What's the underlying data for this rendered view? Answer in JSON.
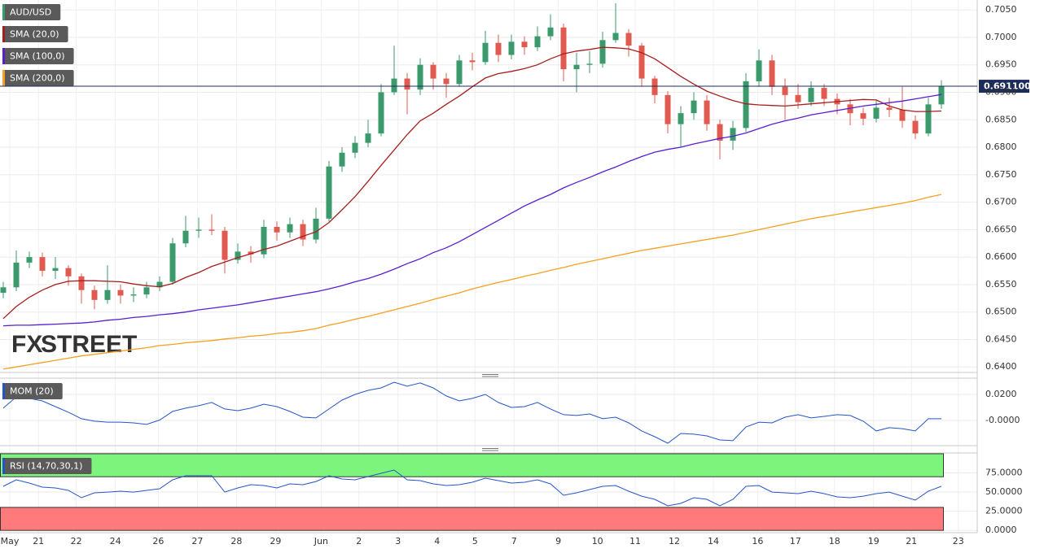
{
  "watermark": [
    "FX",
    "STREET"
  ],
  "chart_data": [
    {
      "type": "candlestick",
      "name": "AUD/USD",
      "up_color": "#3a9a6c",
      "down_color": "#e05a50",
      "open": [
        0.6535,
        0.6545,
        0.659,
        0.66,
        0.6575,
        0.658,
        0.6565,
        0.654,
        0.6522,
        0.654,
        0.653,
        0.6532,
        0.6545,
        0.6555,
        0.6625,
        0.6648,
        0.665,
        0.6648,
        0.6595,
        0.661,
        0.6605,
        0.6655,
        0.6645,
        0.666,
        0.6632,
        0.667,
        0.6765,
        0.679,
        0.6808,
        0.6825,
        0.69,
        0.6925,
        0.6905,
        0.695,
        0.6925,
        0.6915,
        0.6958,
        0.6955,
        0.699,
        0.6968,
        0.6992,
        0.6982,
        0.7002,
        0.7018,
        0.6942,
        0.695,
        0.6952,
        0.6995,
        0.7008,
        0.6985,
        0.6925,
        0.6895,
        0.6842,
        0.6862,
        0.6885,
        0.6842,
        0.6812,
        0.6835,
        0.692,
        0.6958,
        0.691,
        0.6895,
        0.6882,
        0.6908,
        0.6888,
        0.6878,
        0.6862,
        0.6852,
        0.6872,
        0.6868,
        0.6848,
        0.6825,
        0.6878
      ],
      "high": [
        0.6555,
        0.6612,
        0.661,
        0.6608,
        0.66,
        0.6585,
        0.657,
        0.6548,
        0.6585,
        0.655,
        0.6545,
        0.6555,
        0.6565,
        0.6635,
        0.6675,
        0.6672,
        0.6678,
        0.6655,
        0.6625,
        0.662,
        0.6668,
        0.6665,
        0.6672,
        0.6668,
        0.669,
        0.6775,
        0.68,
        0.682,
        0.685,
        0.6915,
        0.6985,
        0.6935,
        0.6962,
        0.6955,
        0.6935,
        0.6968,
        0.6972,
        0.7012,
        0.7005,
        0.7005,
        0.7002,
        0.702,
        0.7042,
        0.7025,
        0.6972,
        0.6975,
        0.701,
        0.7062,
        0.7015,
        0.699,
        0.693,
        0.6902,
        0.6875,
        0.69,
        0.6895,
        0.685,
        0.6848,
        0.6935,
        0.6978,
        0.6968,
        0.6925,
        0.6915,
        0.692,
        0.6915,
        0.6898,
        0.6888,
        0.6872,
        0.6885,
        0.689,
        0.691,
        0.6858,
        0.689,
        0.6922
      ],
      "low": [
        0.6525,
        0.6538,
        0.658,
        0.6565,
        0.656,
        0.6548,
        0.6515,
        0.6505,
        0.6515,
        0.6515,
        0.6518,
        0.6525,
        0.6538,
        0.655,
        0.6618,
        0.6635,
        0.664,
        0.657,
        0.6588,
        0.659,
        0.6598,
        0.663,
        0.6635,
        0.662,
        0.6625,
        0.6665,
        0.6755,
        0.678,
        0.68,
        0.682,
        0.6895,
        0.686,
        0.6895,
        0.6905,
        0.689,
        0.691,
        0.694,
        0.695,
        0.6955,
        0.696,
        0.6968,
        0.6975,
        0.6995,
        0.692,
        0.69,
        0.6935,
        0.6945,
        0.699,
        0.6965,
        0.691,
        0.688,
        0.6825,
        0.68,
        0.685,
        0.683,
        0.6778,
        0.6795,
        0.6828,
        0.691,
        0.6895,
        0.685,
        0.687,
        0.6875,
        0.6875,
        0.686,
        0.684,
        0.684,
        0.6845,
        0.6855,
        0.6835,
        0.6815,
        0.682,
        0.687
      ],
      "close": [
        0.6545,
        0.659,
        0.66,
        0.6575,
        0.658,
        0.6565,
        0.654,
        0.6522,
        0.654,
        0.653,
        0.6532,
        0.6545,
        0.6555,
        0.6625,
        0.6648,
        0.665,
        0.6648,
        0.6595,
        0.661,
        0.6605,
        0.6655,
        0.6645,
        0.666,
        0.6632,
        0.667,
        0.6765,
        0.679,
        0.6808,
        0.6825,
        0.69,
        0.6925,
        0.6905,
        0.695,
        0.6925,
        0.6915,
        0.6958,
        0.6955,
        0.699,
        0.6968,
        0.6992,
        0.6982,
        0.7002,
        0.7018,
        0.6942,
        0.695,
        0.6952,
        0.6995,
        0.7008,
        0.6985,
        0.6925,
        0.6895,
        0.6842,
        0.6862,
        0.6885,
        0.6842,
        0.6812,
        0.6835,
        0.692,
        0.6958,
        0.691,
        0.6895,
        0.6882,
        0.6908,
        0.6888,
        0.6878,
        0.6862,
        0.6852,
        0.6872,
        0.6868,
        0.6848,
        0.6825,
        0.6878,
        0.6911
      ],
      "overlays": [
        {
          "name": "SMA (20,0)",
          "color": "#a51e1e",
          "values": [
            0.6488,
            0.651,
            0.6527,
            0.654,
            0.655,
            0.6556,
            0.6557,
            0.6557,
            0.6556,
            0.6555,
            0.6551,
            0.6548,
            0.6546,
            0.6552,
            0.6563,
            0.6572,
            0.6583,
            0.6591,
            0.6599,
            0.6606,
            0.6614,
            0.662,
            0.6629,
            0.6638,
            0.6646,
            0.6663,
            0.6686,
            0.671,
            0.6738,
            0.6767,
            0.6795,
            0.6823,
            0.6848,
            0.6862,
            0.6878,
            0.6893,
            0.691,
            0.6926,
            0.6934,
            0.6938,
            0.6943,
            0.695,
            0.6961,
            0.697,
            0.6975,
            0.6978,
            0.6982,
            0.6981,
            0.6979,
            0.6972,
            0.6961,
            0.6945,
            0.6929,
            0.6915,
            0.6902,
            0.6893,
            0.6885,
            0.6879,
            0.6877,
            0.6876,
            0.6875,
            0.6877,
            0.6879,
            0.6881,
            0.6883,
            0.6885,
            0.6887,
            0.6886,
            0.6875,
            0.6868,
            0.6865,
            0.6865,
            0.6866
          ]
        },
        {
          "name": "SMA (100,0)",
          "color": "#5a1ed0",
          "values": [
            0.6475,
            0.6476,
            0.6476,
            0.6477,
            0.6478,
            0.6479,
            0.648,
            0.6482,
            0.6485,
            0.6487,
            0.649,
            0.6492,
            0.6495,
            0.6497,
            0.65,
            0.6504,
            0.6507,
            0.651,
            0.6513,
            0.6517,
            0.6521,
            0.6525,
            0.6529,
            0.6533,
            0.6537,
            0.6542,
            0.6548,
            0.6555,
            0.6561,
            0.6569,
            0.6578,
            0.6588,
            0.6597,
            0.6608,
            0.6617,
            0.6628,
            0.6641,
            0.6654,
            0.6667,
            0.668,
            0.6693,
            0.6704,
            0.6714,
            0.6726,
            0.6736,
            0.6745,
            0.6755,
            0.6764,
            0.6774,
            0.6783,
            0.6791,
            0.6796,
            0.68,
            0.6806,
            0.6811,
            0.6816,
            0.682,
            0.6826,
            0.6834,
            0.6842,
            0.6848,
            0.6853,
            0.6859,
            0.6863,
            0.6867,
            0.6871,
            0.6875,
            0.6878,
            0.6881,
            0.6884,
            0.6888,
            0.6892,
            0.6896
          ]
        },
        {
          "name": "SMA (200,0)",
          "color": "#f5a020",
          "values": [
            0.6396,
            0.64,
            0.6404,
            0.6408,
            0.6412,
            0.6416,
            0.642,
            0.6423,
            0.6426,
            0.6429,
            0.6432,
            0.6435,
            0.6439,
            0.6441,
            0.6444,
            0.6446,
            0.6448,
            0.6451,
            0.6453,
            0.6456,
            0.6458,
            0.6461,
            0.6463,
            0.6466,
            0.647,
            0.6476,
            0.6481,
            0.6487,
            0.6492,
            0.6498,
            0.6504,
            0.651,
            0.6516,
            0.6523,
            0.6529,
            0.6535,
            0.6542,
            0.6548,
            0.6554,
            0.6559,
            0.6565,
            0.657,
            0.6576,
            0.6581,
            0.6587,
            0.6592,
            0.6597,
            0.6602,
            0.6607,
            0.6612,
            0.6616,
            0.662,
            0.6624,
            0.6628,
            0.6632,
            0.6636,
            0.664,
            0.6645,
            0.665,
            0.6655,
            0.666,
            0.6665,
            0.667,
            0.6674,
            0.6678,
            0.6682,
            0.6686,
            0.669,
            0.6694,
            0.6698,
            0.6703,
            0.6709,
            0.6714
          ]
        }
      ],
      "last_price": {
        "value": 0.6911,
        "label": "0.691100",
        "color": "#1c2d5a"
      },
      "xlim": [
        -0.25,
        74.75
      ],
      "xticks": [
        {
          "value": 0.5,
          "label": "May"
        },
        {
          "value": 2.7,
          "label": "21"
        },
        {
          "value": 5.6,
          "label": "22"
        },
        {
          "value": 8.6,
          "label": "24"
        },
        {
          "value": 11.9,
          "label": "26"
        },
        {
          "value": 14.9,
          "label": "27"
        },
        {
          "value": 17.9,
          "label": "28"
        },
        {
          "value": 20.9,
          "label": "29"
        },
        {
          "value": 24.4,
          "label": "Jun"
        },
        {
          "value": 27.3,
          "label": "2"
        },
        {
          "value": 30.3,
          "label": "3"
        },
        {
          "value": 33.3,
          "label": "4"
        },
        {
          "value": 36.2,
          "label": "5"
        },
        {
          "value": 39.2,
          "label": "7"
        },
        {
          "value": 42.6,
          "label": "9"
        },
        {
          "value": 45.6,
          "label": "10"
        },
        {
          "value": 48.5,
          "label": "11"
        },
        {
          "value": 51.5,
          "label": "12"
        },
        {
          "value": 54.5,
          "label": "14"
        },
        {
          "value": 57.9,
          "label": "16"
        },
        {
          "value": 60.8,
          "label": "17"
        },
        {
          "value": 63.8,
          "label": "18"
        },
        {
          "value": 66.8,
          "label": "19"
        },
        {
          "value": 69.7,
          "label": "21"
        },
        {
          "value": 73.3,
          "label": "23"
        }
      ],
      "ylim": [
        0.639,
        0.7068
      ],
      "yticks": [
        {
          "value": 0.64,
          "label": "0.6400"
        },
        {
          "value": 0.645,
          "label": "0.6450"
        },
        {
          "value": 0.65,
          "label": "0.6500"
        },
        {
          "value": 0.655,
          "label": "0.6550"
        },
        {
          "value": 0.66,
          "label": "0.6600"
        },
        {
          "value": 0.665,
          "label": "0.6650"
        },
        {
          "value": 0.67,
          "label": "0.6700"
        },
        {
          "value": 0.675,
          "label": "0.6750"
        },
        {
          "value": 0.68,
          "label": "0.6800"
        },
        {
          "value": 0.685,
          "label": "0.6850"
        },
        {
          "value": 0.69,
          "label": "0.6900"
        },
        {
          "value": 0.695,
          "label": "0.6950"
        },
        {
          "value": 0.7,
          "label": "0.7000"
        },
        {
          "value": 0.705,
          "label": "0.7050"
        }
      ],
      "grid": true
    },
    {
      "type": "line",
      "series": [
        {
          "name": "MOM (20)",
          "color": "#2455c8",
          "values": [
            0.0094,
            0.0181,
            0.0169,
            0.015,
            0.0106,
            0.0063,
            0.0013,
            -0.0006,
            -0.0013,
            -0.0013,
            -0.0019,
            -0.0031,
            0.0003,
            0.0069,
            0.0094,
            0.0113,
            0.0138,
            0.0088,
            0.0075,
            0.0094,
            0.0125,
            0.0106,
            0.0069,
            0.0025,
            0.0019,
            0.0088,
            0.0156,
            0.02,
            0.0231,
            0.025,
            0.0294,
            0.0263,
            0.0288,
            0.025,
            0.0188,
            0.015,
            0.0169,
            0.02,
            0.0138,
            0.01,
            0.0106,
            0.0138,
            0.0088,
            0.0044,
            0.0038,
            0.005,
            0.0013,
            0.0025,
            -0.0019,
            -0.0081,
            -0.0125,
            -0.0175,
            -0.01,
            -0.0106,
            -0.0119,
            -0.015,
            -0.0156,
            -0.005,
            -0.0013,
            -0.0019,
            0.0025,
            0.0044,
            0.0019,
            0.0031,
            0.0044,
            0.0038,
            -0.0006,
            -0.0081,
            -0.0056,
            -0.0063,
            -0.0081,
            0.0013,
            0.0013
          ]
        }
      ],
      "ylim": [
        -0.0194,
        0.0325
      ],
      "yticks": [
        {
          "value": 0,
          "label": "-0.0000"
        },
        {
          "value": 0.02,
          "label": "0.0200"
        }
      ],
      "grid": true
    },
    {
      "type": "line",
      "series": [
        {
          "name": "RSI (14,70,30,1)",
          "color": "#2455c8",
          "values": [
            57.5,
            66.0,
            61.7,
            56.4,
            55.4,
            52.2,
            42.6,
            49.0,
            50.0,
            51.1,
            50.0,
            52.2,
            54.3,
            66.0,
            71.3,
            71.3,
            71.3,
            50.0,
            55.4,
            59.6,
            58.5,
            55.4,
            60.7,
            59.6,
            63.8,
            71.3,
            67.0,
            66.0,
            70.2,
            74.5,
            78.7,
            66.0,
            64.9,
            60.7,
            58.5,
            59.6,
            62.8,
            68.1,
            64.9,
            61.7,
            62.8,
            66.0,
            60.7,
            45.8,
            49.0,
            53.2,
            57.5,
            58.5,
            51.1,
            44.7,
            40.5,
            32.0,
            35.2,
            42.6,
            40.5,
            32.0,
            40.5,
            57.5,
            58.5,
            50.0,
            49.0,
            47.9,
            51.1,
            47.9,
            43.7,
            42.6,
            44.7,
            47.9,
            50.0,
            44.7,
            39.4,
            51.1,
            57.5
          ]
        }
      ],
      "bands": [
        {
          "range": [
            70,
            100
          ],
          "color": "#7df57d"
        },
        {
          "range": [
            0,
            30
          ],
          "color": "#ff7b7b"
        }
      ],
      "ylim": [
        -3,
        101
      ],
      "yticks": [
        {
          "value": 0,
          "label": "0.0000"
        },
        {
          "value": 25,
          "label": "25.0000"
        },
        {
          "value": 50,
          "label": "50.0000"
        },
        {
          "value": 75,
          "label": "75.0000"
        }
      ],
      "grid": true
    }
  ]
}
